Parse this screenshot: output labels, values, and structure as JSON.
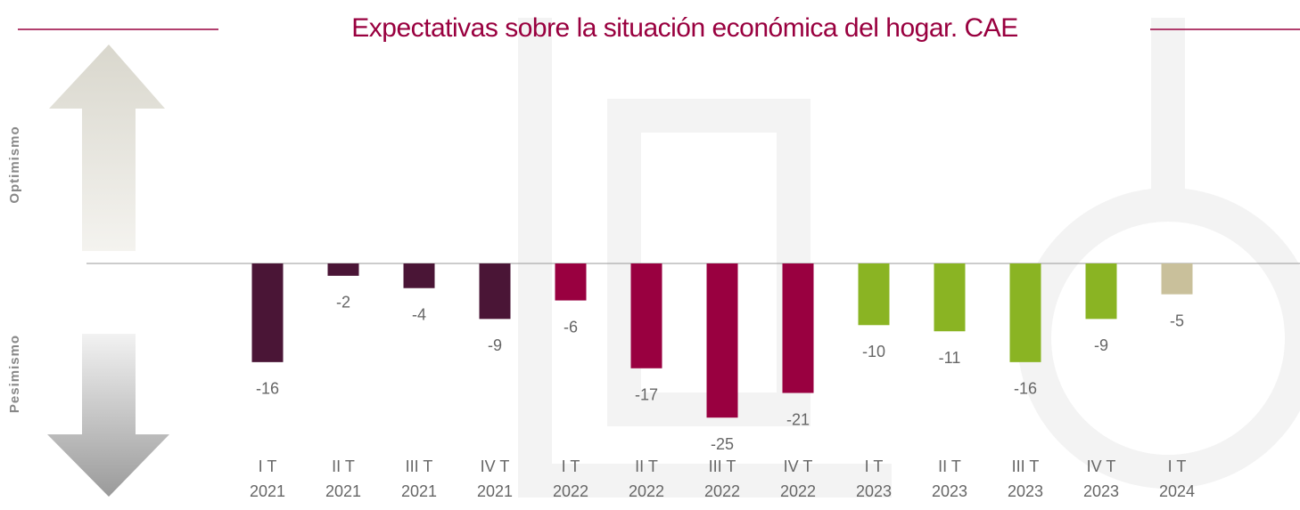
{
  "chart_data": {
    "type": "bar",
    "title": "Expectativas sobre la situación económica del hogar. CAE",
    "side_labels": [
      "Optimismo",
      "Pesimismo"
    ],
    "categories": [
      [
        "I T",
        "2021"
      ],
      [
        "II T",
        "2021"
      ],
      [
        "III T",
        "2021"
      ],
      [
        "IV T",
        "2021"
      ],
      [
        "I T",
        "2022"
      ],
      [
        "II T",
        "2022"
      ],
      [
        "III T",
        "2022"
      ],
      [
        "IV T",
        "2022"
      ],
      [
        "I T",
        "2023"
      ],
      [
        "II T",
        "2023"
      ],
      [
        "III T",
        "2023"
      ],
      [
        "IV T",
        "2023"
      ],
      [
        "I T",
        "2024"
      ]
    ],
    "values": [
      -16,
      -2,
      -4,
      -9,
      -6,
      -17,
      -25,
      -21,
      -10,
      -11,
      -16,
      -9,
      -5
    ],
    "colors": [
      "#4a1536",
      "#4a1536",
      "#4a1536",
      "#4a1536",
      "#990040",
      "#990040",
      "#990040",
      "#990040",
      "#8ab423",
      "#8ab423",
      "#8ab423",
      "#8ab423",
      "#c9c09b"
    ],
    "ylim": [
      -28,
      28
    ]
  }
}
